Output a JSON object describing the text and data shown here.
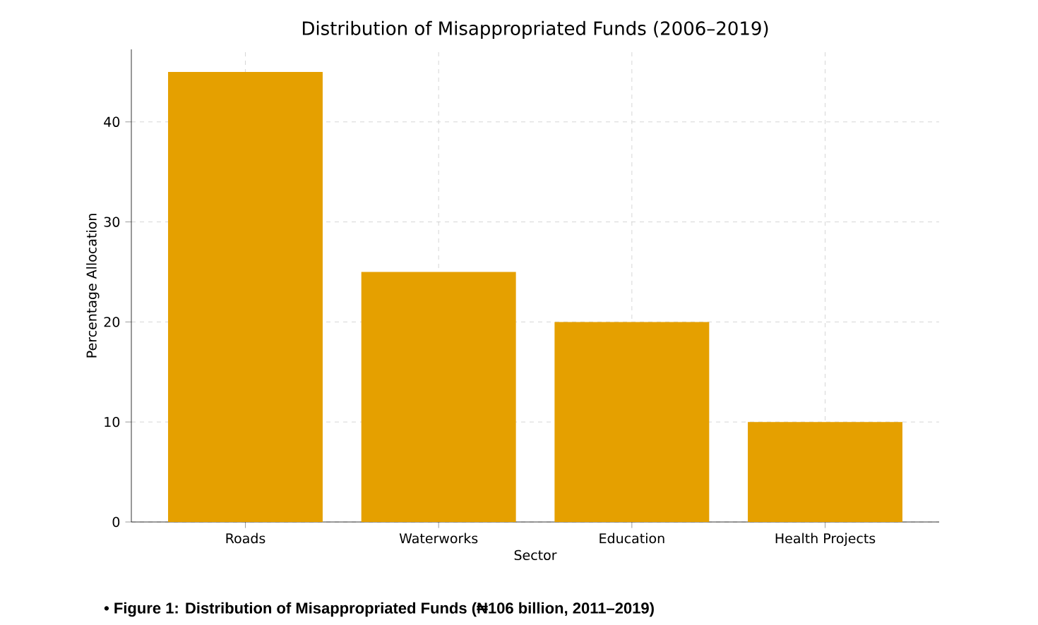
{
  "chart_data": {
    "type": "bar",
    "title": "Distribution of Misappropriated Funds (2006–2019)",
    "xlabel": "Sector",
    "ylabel": "Percentage Allocation",
    "categories": [
      "Roads",
      "Waterworks",
      "Education",
      "Health Projects"
    ],
    "values": [
      45,
      25,
      20,
      10
    ],
    "color": "#e5a000",
    "ylim": [
      0,
      47.25
    ],
    "yticks": [
      0,
      10,
      20,
      30,
      40
    ],
    "grid": true,
    "annotations": [
      "• Figure 1: Distribution of Misappropriated Funds (₦106 billion, 2011–2019)"
    ]
  }
}
